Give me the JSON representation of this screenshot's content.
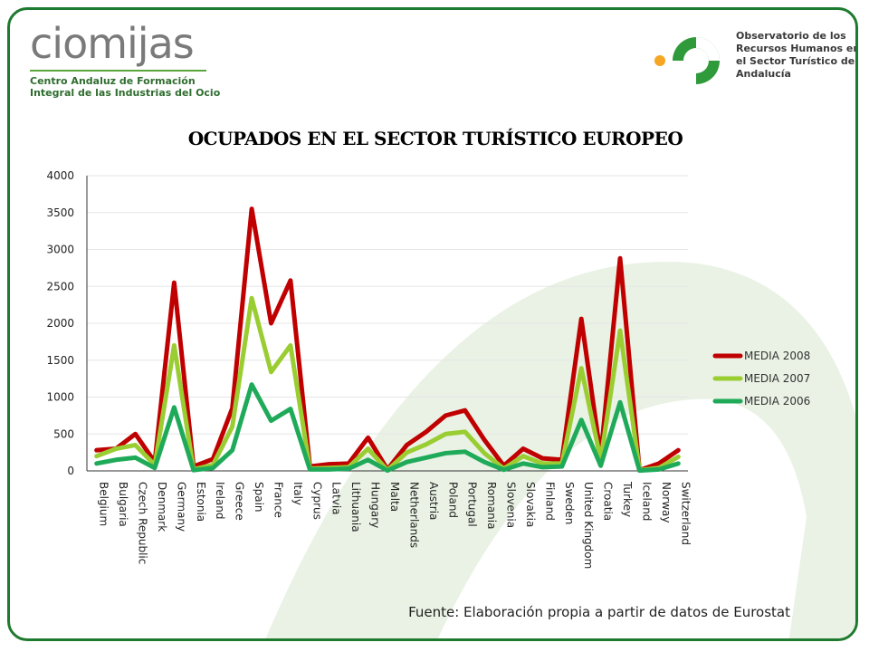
{
  "header": {
    "logo_left": "ciomijas",
    "logo_left_subtitle": "Centro Andaluz de Formación Integral de las Industrias del Ocio",
    "logo_right_text": "Observatorio de los Recursos Humanos en el Sector Turístico de Andalucía"
  },
  "footer": {
    "source": "Fuente: Elaboración propia a partir de datos de Eurostat"
  },
  "colors": {
    "frame": "#1e7a2e",
    "series_2008": "#c00000",
    "series_2007": "#9acd32",
    "series_2006": "#1faa5a"
  },
  "chart_data": {
    "type": "line",
    "title": "OCUPADOS EN EL SECTOR TURÍSTICO EUROPEO",
    "xlabel": "",
    "ylabel": "",
    "ylim": [
      0,
      4000
    ],
    "yticks": [
      0,
      500,
      1000,
      1500,
      2000,
      2500,
      3000,
      3500,
      4000
    ],
    "grid": true,
    "legend_position": "right",
    "categories": [
      "Belgium",
      "Bulgaria",
      "Czech Republic",
      "Denmark",
      "Germany",
      "Estonia",
      "Ireland",
      "Greece",
      "Spain",
      "France",
      "Italy",
      "Cyprus",
      "Latvia",
      "Lithuania",
      "Hungary",
      "Malta",
      "Netherlands",
      "Austria",
      "Poland",
      "Portugal",
      "Romania",
      "Slovenia",
      "Slovakia",
      "Finland",
      "Sweden",
      "United Kingdom",
      "Croatia",
      "Turkey",
      "Iceland",
      "Norway",
      "Switzerland"
    ],
    "series": [
      {
        "name": "MEDIA 2008",
        "values": [
          280,
          300,
          500,
          120,
          2550,
          60,
          160,
          850,
          3550,
          2000,
          2580,
          60,
          90,
          100,
          450,
          20,
          350,
          530,
          750,
          820,
          420,
          70,
          300,
          170,
          150,
          2060,
          200,
          2880,
          10,
          100,
          280
        ]
      },
      {
        "name": "MEDIA 2007",
        "values": [
          200,
          300,
          350,
          80,
          1700,
          20,
          80,
          600,
          2340,
          1340,
          1700,
          30,
          40,
          50,
          300,
          10,
          250,
          360,
          500,
          530,
          240,
          30,
          200,
          100,
          100,
          1390,
          150,
          1900,
          10,
          40,
          190
        ]
      },
      {
        "name": "MEDIA 2006",
        "values": [
          100,
          150,
          180,
          40,
          860,
          10,
          40,
          280,
          1170,
          680,
          840,
          20,
          20,
          30,
          150,
          5,
          120,
          180,
          240,
          260,
          120,
          15,
          100,
          50,
          60,
          690,
          70,
          930,
          5,
          20,
          100
        ]
      }
    ]
  }
}
